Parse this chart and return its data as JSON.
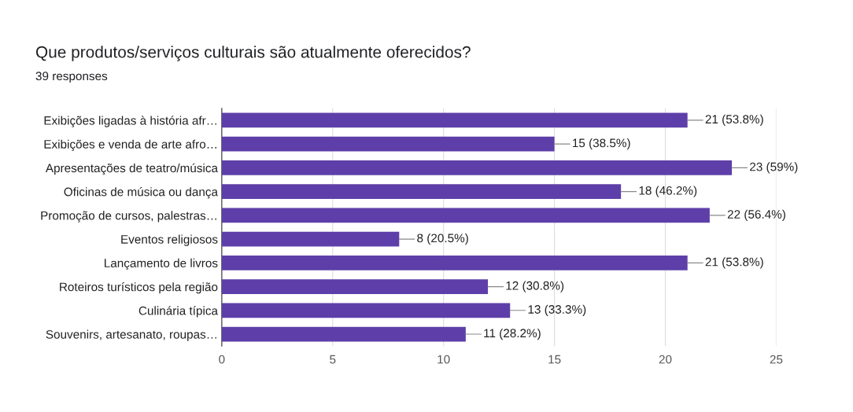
{
  "chart_data": {
    "type": "bar",
    "orientation": "horizontal",
    "title": "Que produtos/serviços culturais são atualmente oferecidos?",
    "subtitle": "39 responses",
    "categories": [
      "Exibições ligadas à história afr…",
      "Exibições e venda de arte afro…",
      "Apresentações de teatro/música",
      "Oficinas de música ou dança",
      "Promoção de cursos, palestras…",
      "Eventos religiosos",
      "Lançamento de livros",
      "Roteiros turísticos pela região",
      "Culinária típica",
      "Souvenirs, artesanato, roupas…"
    ],
    "values": [
      21,
      15,
      23,
      18,
      22,
      8,
      21,
      12,
      13,
      11
    ],
    "value_labels": [
      "21 (53.8%)",
      "15 (38.5%)",
      "23 (59%)",
      "18 (46.2%)",
      "22 (56.4%)",
      "8 (20.5%)",
      "21 (53.8%)",
      "12 (30.8%)",
      "13 (33.3%)",
      "11 (28.2%)"
    ],
    "color": "#5e3fa9",
    "xlim": [
      0,
      25
    ],
    "xticks": [
      0,
      5,
      10,
      15,
      20,
      25
    ],
    "grid": "x"
  }
}
